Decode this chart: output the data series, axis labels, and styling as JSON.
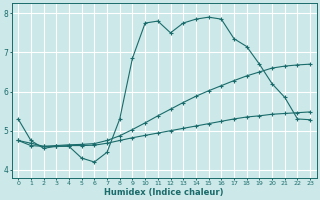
{
  "xlabel": "Humidex (Indice chaleur)",
  "ylabel": "",
  "bg_color": "#cce8e8",
  "grid_color": "#ffffff",
  "line_color": "#1a6b6b",
  "xlim": [
    -0.5,
    23.5
  ],
  "ylim": [
    3.8,
    8.25
  ],
  "yticks": [
    4,
    5,
    6,
    7,
    8
  ],
  "xticks": [
    0,
    1,
    2,
    3,
    4,
    5,
    6,
    7,
    8,
    9,
    10,
    11,
    12,
    13,
    14,
    15,
    16,
    17,
    18,
    19,
    20,
    21,
    22,
    23
  ],
  "series1_x": [
    0,
    1,
    2,
    3,
    4,
    5,
    6,
    7,
    8,
    9,
    10,
    11,
    12,
    13,
    14,
    15,
    16,
    17,
    18,
    19,
    20,
    21,
    22,
    23
  ],
  "series1_y": [
    5.3,
    4.75,
    4.55,
    4.6,
    4.6,
    4.3,
    4.2,
    4.45,
    5.3,
    6.85,
    7.75,
    7.8,
    7.5,
    7.75,
    7.85,
    7.9,
    7.85,
    7.35,
    7.15,
    6.7,
    6.2,
    5.85,
    5.3,
    5.28
  ],
  "series2_x": [
    0,
    1,
    2,
    3,
    4,
    5,
    6,
    7,
    8,
    9,
    10,
    11,
    12,
    13,
    14,
    15,
    16,
    17,
    18,
    19,
    20,
    21,
    22,
    23
  ],
  "series2_y": [
    4.75,
    4.62,
    4.6,
    4.6,
    4.62,
    4.62,
    4.63,
    4.68,
    4.75,
    4.82,
    4.88,
    4.94,
    5.0,
    5.06,
    5.12,
    5.18,
    5.24,
    5.3,
    5.35,
    5.38,
    5.42,
    5.44,
    5.46,
    5.48
  ],
  "series3_x": [
    0,
    1,
    2,
    3,
    4,
    5,
    6,
    7,
    8,
    9,
    10,
    11,
    12,
    13,
    14,
    15,
    16,
    17,
    18,
    19,
    20,
    21,
    22,
    23
  ],
  "series3_y": [
    4.75,
    4.68,
    4.6,
    4.62,
    4.64,
    4.65,
    4.67,
    4.75,
    4.87,
    5.03,
    5.2,
    5.38,
    5.55,
    5.72,
    5.88,
    6.02,
    6.15,
    6.28,
    6.4,
    6.5,
    6.6,
    6.65,
    6.68,
    6.7
  ]
}
